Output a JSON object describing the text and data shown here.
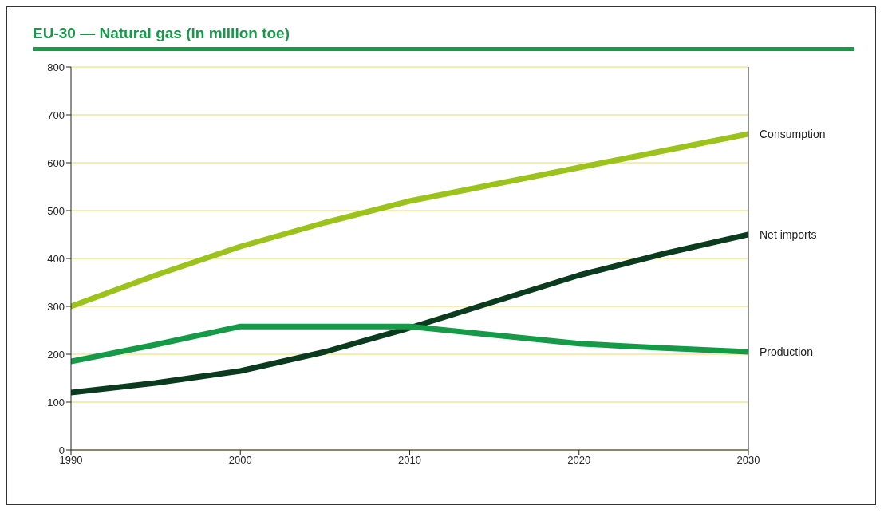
{
  "chart_data": {
    "type": "line",
    "title": "EU-30 — Natural gas (in million toe)",
    "x": [
      1990,
      1995,
      2000,
      2005,
      2010,
      2015,
      2020,
      2025,
      2030
    ],
    "series": [
      {
        "name": "Consumption",
        "color": "#9cc31c",
        "values": [
          300,
          365,
          425,
          475,
          520,
          555,
          590,
          625,
          660
        ]
      },
      {
        "name": "Net imports",
        "color": "#0b3b1e",
        "values": [
          120,
          140,
          165,
          205,
          255,
          310,
          365,
          410,
          450
        ]
      },
      {
        "name": "Production",
        "color": "#159a48",
        "values": [
          185,
          220,
          258,
          258,
          258,
          240,
          222,
          213,
          205
        ]
      }
    ],
    "xlim": [
      1990,
      2030
    ],
    "xticks": [
      1990,
      2000,
      2010,
      2020,
      2030
    ],
    "ylim": [
      0,
      800
    ],
    "yticks": [
      0,
      100,
      200,
      300,
      400,
      500,
      600,
      700,
      800
    ],
    "grid": "y",
    "marker": "none",
    "line_style": "solid"
  }
}
